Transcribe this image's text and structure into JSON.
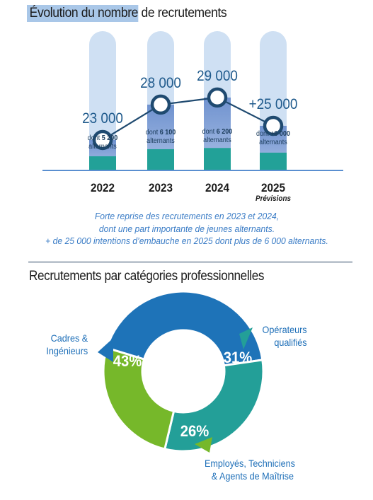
{
  "chart_data": [
    {
      "type": "bar",
      "title_highlight": "Évolution du nombre",
      "title_rest": " de recrutements",
      "categories": [
        "2022",
        "2023",
        "2024",
        "2025"
      ],
      "category_notes": [
        "",
        "",
        "",
        "Prévisions"
      ],
      "series": [
        {
          "values": [
            23000,
            28000,
            29000,
            25000
          ]
        },
        {
          "values": [
            5200,
            6100,
            6200,
            6000
          ]
        }
      ],
      "total_labels": [
        "23 000",
        "28 000",
        "29 000",
        "+25 000"
      ],
      "sub_prefix": "dont ",
      "sub_values": [
        "5 200",
        "6 100",
        "6 200",
        "+6 000"
      ],
      "sub_suffix": "alternants",
      "description": [
        "Forte reprise des recrutements en 2023 et 2024,",
        "dont une part importante de jeunes alternants.",
        "+ de 25 000 intentions d’embauche en 2025 dont plus de 6 000 alternants."
      ],
      "colors": {
        "capsule": "#cfe0f3",
        "bar_top": "#6f92cf",
        "bar_bottom": "#a9bfe5",
        "base": "#22a198",
        "line": "#1f4a70",
        "label": "#1f5a8c",
        "axis": "#5a8fd0"
      }
    },
    {
      "type": "pie",
      "title": "Recrutements par catégories professionnelles",
      "slices": [
        {
          "label": [
            "Cadres &",
            "Ingénieurs"
          ],
          "value": 43,
          "text": "43%",
          "color": "#1e73b8"
        },
        {
          "label": [
            "Opérateurs",
            "qualifiés"
          ],
          "value": 31,
          "text": "31%",
          "color": "#239f98"
        },
        {
          "label": [
            "Employés, Techniciens",
            "& Agents de Maîtrise"
          ],
          "value": 26,
          "text": "26%",
          "color": "#76b82a"
        }
      ]
    }
  ]
}
